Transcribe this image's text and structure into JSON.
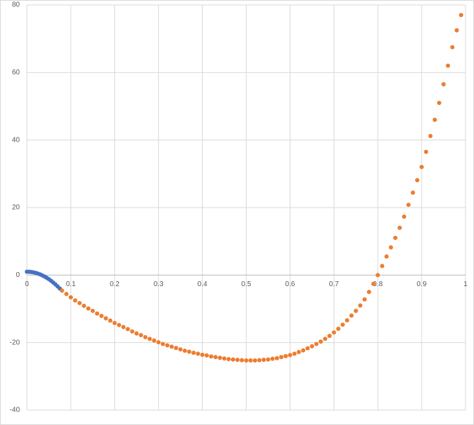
{
  "chart_data": {
    "type": "scatter",
    "xlim": [
      0,
      1
    ],
    "ylim": [
      -40,
      80
    ],
    "xticks": [
      0,
      0.1,
      0.2,
      0.3,
      0.4,
      0.5,
      0.6,
      0.7,
      0.8,
      0.9,
      1
    ],
    "yticks": [
      -40,
      -20,
      0,
      20,
      40,
      60,
      80
    ],
    "grid": true,
    "series": [
      {
        "color": "#4472c4",
        "x": [
          0,
          0.005,
          0.01,
          0.015,
          0.02,
          0.025,
          0.03,
          0.035,
          0.04,
          0.045,
          0.05,
          0.055,
          0.06,
          0.065,
          0.07,
          0.075
        ],
        "values": [
          1.0,
          0.98,
          0.91,
          0.8,
          0.64,
          0.44,
          0.2,
          -0.09,
          -0.42,
          -0.8,
          -1.22,
          -1.69,
          -2.2,
          -2.76,
          -3.36,
          -4.0
        ]
      },
      {
        "color": "#ed7d31",
        "x": [
          0.08,
          0.09,
          0.1,
          0.11,
          0.12,
          0.13,
          0.14,
          0.15,
          0.16,
          0.17,
          0.18,
          0.19,
          0.2,
          0.21,
          0.22,
          0.23,
          0.24,
          0.25,
          0.26,
          0.27,
          0.28,
          0.29,
          0.3,
          0.31,
          0.32,
          0.33,
          0.34,
          0.35,
          0.36,
          0.37,
          0.38,
          0.39,
          0.4,
          0.41,
          0.42,
          0.43,
          0.44,
          0.45,
          0.46,
          0.47,
          0.48,
          0.49,
          0.5,
          0.51,
          0.52,
          0.53,
          0.54,
          0.55,
          0.56,
          0.57,
          0.58,
          0.59,
          0.6,
          0.61,
          0.62,
          0.63,
          0.64,
          0.65,
          0.66,
          0.67,
          0.68,
          0.69,
          0.7,
          0.71,
          0.72,
          0.73,
          0.74,
          0.75,
          0.76,
          0.77,
          0.78,
          0.79,
          0.8,
          0.81,
          0.82,
          0.83,
          0.84,
          0.85,
          0.86,
          0.87,
          0.88,
          0.89,
          0.9,
          0.91,
          0.92,
          0.93,
          0.94,
          0.95,
          0.96,
          0.97,
          0.98,
          0.99
        ],
        "values": [
          -4.6,
          -5.6,
          -6.6,
          -7.5,
          -8.3,
          -9.1,
          -9.9,
          -10.6,
          -11.4,
          -12.1,
          -12.8,
          -13.5,
          -14.2,
          -14.8,
          -15.4,
          -16.0,
          -16.7,
          -17.3,
          -17.8,
          -18.4,
          -18.9,
          -19.4,
          -19.9,
          -20.4,
          -20.8,
          -21.2,
          -21.6,
          -22.0,
          -22.4,
          -22.7,
          -23.0,
          -23.3,
          -23.6,
          -23.8,
          -24.1,
          -24.3,
          -24.5,
          -24.7,
          -24.9,
          -25.0,
          -25.1,
          -25.2,
          -25.3,
          -25.3,
          -25.3,
          -25.2,
          -25.1,
          -25.0,
          -24.8,
          -24.6,
          -24.3,
          -24.0,
          -23.7,
          -23.3,
          -22.8,
          -22.3,
          -21.7,
          -21.1,
          -20.4,
          -19.7,
          -18.9,
          -18.0,
          -17.0,
          -15.9,
          -14.7,
          -13.4,
          -12.0,
          -10.6,
          -9.0,
          -7.2,
          -5.0,
          -2.6,
          0.0,
          2.7,
          5.5,
          8.2,
          11.0,
          14.0,
          17.3,
          20.8,
          24.4,
          28.1,
          32.0,
          36.5,
          41.2,
          46.0,
          51.0,
          56.5,
          62.0,
          67.5,
          72.5,
          77.0
        ]
      }
    ]
  }
}
